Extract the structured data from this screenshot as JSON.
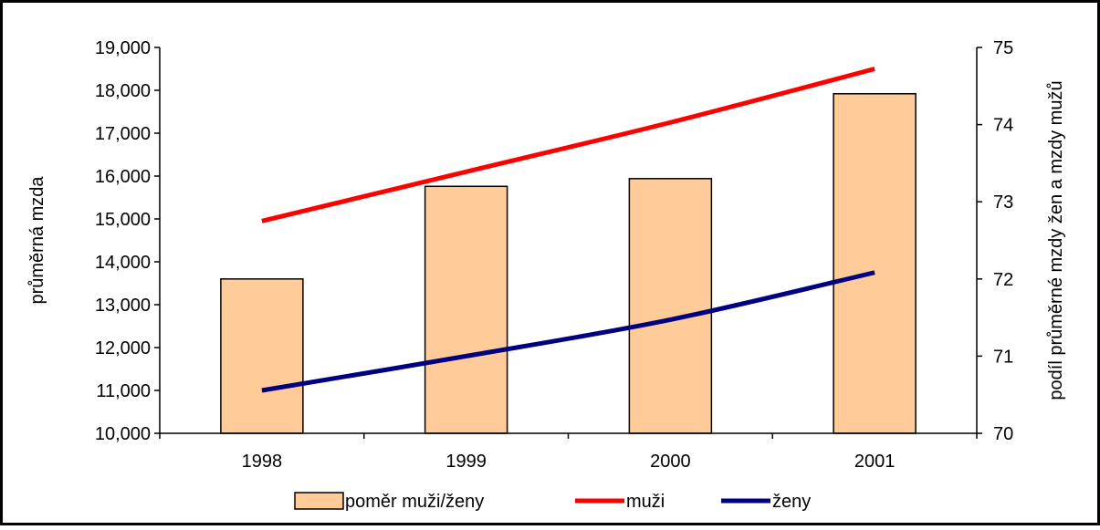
{
  "chart_data": {
    "type": "bar",
    "categories": [
      "1998",
      "1999",
      "2000",
      "2001"
    ],
    "y_left": {
      "label": "průměrná mzda",
      "range": [
        10000,
        19000
      ],
      "ticks": [
        "10,000",
        "11,000",
        "12,000",
        "13,000",
        "14,000",
        "15,000",
        "16,000",
        "17,000",
        "18,000",
        "19,000"
      ]
    },
    "y_right": {
      "label": "podíl průměrné mzdy žen a mzdy mužů",
      "range": [
        70,
        75
      ],
      "ticks": [
        "70",
        "71",
        "72",
        "73",
        "74",
        "75"
      ]
    },
    "bar_series": {
      "name": "poměr muži/ženy",
      "axis": "right",
      "values": [
        72.0,
        73.2,
        73.3,
        74.4
      ],
      "color": "#FFCC99"
    },
    "line_series": [
      {
        "name": "muži",
        "axis": "left",
        "values": [
          14950,
          16100,
          17250,
          18500
        ],
        "color": "#FF0000"
      },
      {
        "name": "ženy",
        "axis": "left",
        "values": [
          11000,
          11800,
          12650,
          13750
        ],
        "color": "#000080"
      }
    ],
    "legend_position": "bottom",
    "grid": false
  }
}
